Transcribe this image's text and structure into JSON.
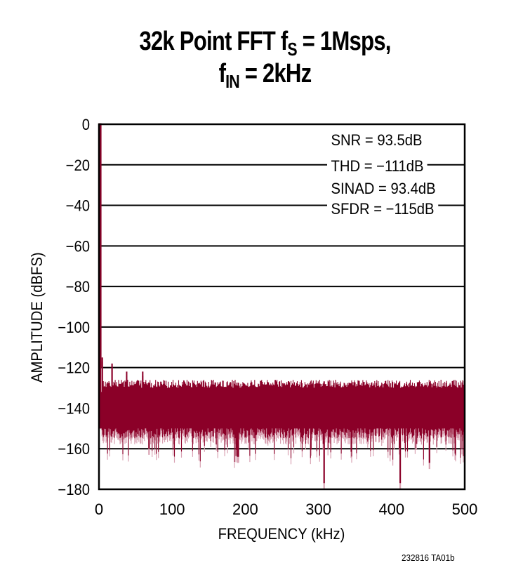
{
  "chart_data": {
    "type": "line",
    "title": "32k Point FFT fS = 1Msps, fIN = 2kHz",
    "title_line1": {
      "main": "32k Point FFT f",
      "sub": "S",
      "rest": " = 1Msps,"
    },
    "title_line2": {
      "main": "f",
      "sub": "IN",
      "rest": " = 2kHz"
    },
    "xlabel": "FREQUENCY (kHz)",
    "ylabel": "AMPLITUDE (dBFS)",
    "xlim": [
      0,
      500
    ],
    "ylim": [
      -180,
      0
    ],
    "x_ticks": [
      "0",
      "100",
      "200",
      "300",
      "400",
      "500"
    ],
    "y_ticks": [
      "0",
      "−20",
      "−40",
      "−60",
      "−80",
      "−100",
      "−120",
      "−140",
      "−160",
      "−180"
    ],
    "grid": "horizontal",
    "series": [
      {
        "name": "FFT spectrum",
        "color": "#8b0028",
        "fundamental": {
          "x_khz": 2,
          "amplitude_dbfs": 0
        },
        "noise_floor_top_dbfs": -128,
        "noise_floor_dense_bottom_dbfs": -152,
        "harmonic_spurs": [
          {
            "x_khz": 4,
            "amplitude_dbfs": -117
          },
          {
            "x_khz": 18,
            "amplitude_dbfs": -120
          },
          {
            "x_khz": 38,
            "amplitude_dbfs": -124
          },
          {
            "x_khz": 60,
            "amplitude_dbfs": -124
          }
        ],
        "deep_nulls": [
          {
            "x_khz": 308,
            "amplitude_dbfs": -180
          },
          {
            "x_khz": 412,
            "amplitude_dbfs": -180
          },
          {
            "x_khz": 68,
            "amplitude_dbfs": -163
          },
          {
            "x_khz": 190,
            "amplitude_dbfs": -167
          },
          {
            "x_khz": 452,
            "amplitude_dbfs": -170
          }
        ]
      }
    ],
    "annotations": [
      "SNR = 93.5dB",
      "THD = −111dB",
      "SINAD = 93.4dB",
      "SFDR = −115dB"
    ],
    "figure_id": "232816 TA01b"
  }
}
